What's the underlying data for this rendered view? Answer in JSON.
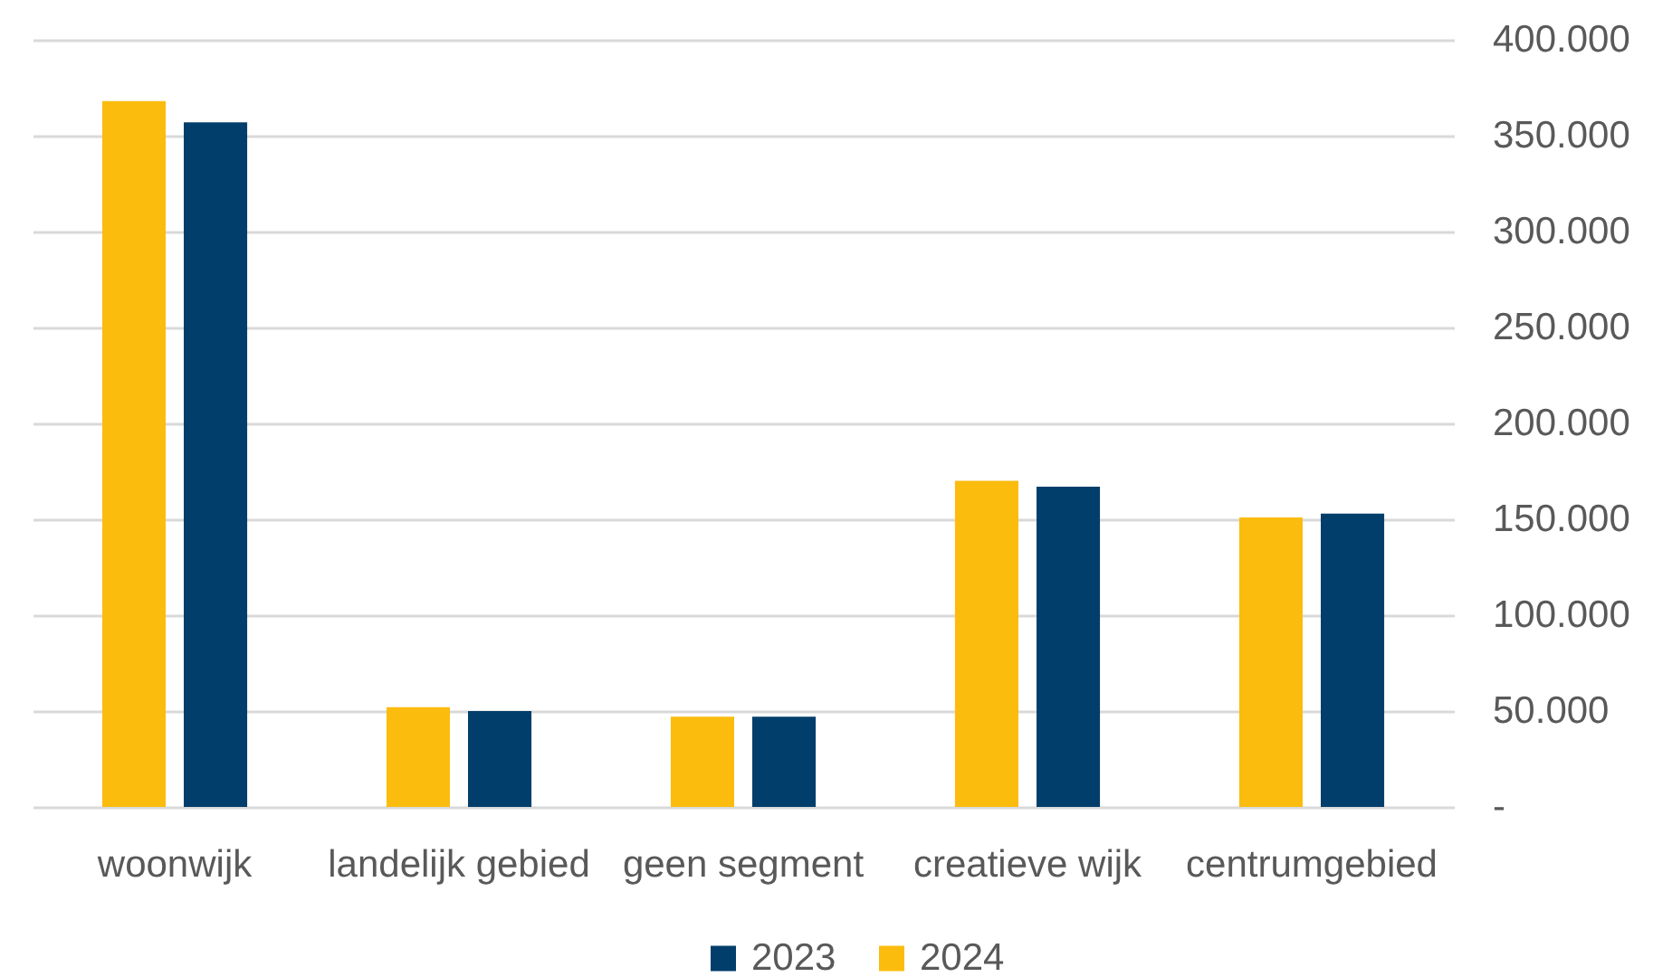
{
  "chart_data": {
    "type": "bar",
    "categories": [
      "woonwijk",
      "landelijk gebied",
      "geen segment",
      "creatieve wijk",
      "centrumgebied"
    ],
    "series": [
      {
        "name": "2023",
        "color": "#023e6b",
        "values": [
          357000,
          50000,
          47000,
          167000,
          153000
        ]
      },
      {
        "name": "2024",
        "color": "#fbbc0e",
        "values": [
          368000,
          52000,
          47000,
          170000,
          151000
        ]
      }
    ],
    "ylim": [
      0,
      400000
    ],
    "yticks": [
      {
        "value": 0,
        "label": "-"
      },
      {
        "value": 50000,
        "label": "50.000"
      },
      {
        "value": 100000,
        "label": "100.000"
      },
      {
        "value": 150000,
        "label": "150.000"
      },
      {
        "value": 200000,
        "label": "200.000"
      },
      {
        "value": 250000,
        "label": "250.000"
      },
      {
        "value": 300000,
        "label": "300.000"
      },
      {
        "value": 350000,
        "label": "350.000"
      },
      {
        "value": 400000,
        "label": "400.000"
      }
    ],
    "grid": "y",
    "legend": "bottom"
  }
}
